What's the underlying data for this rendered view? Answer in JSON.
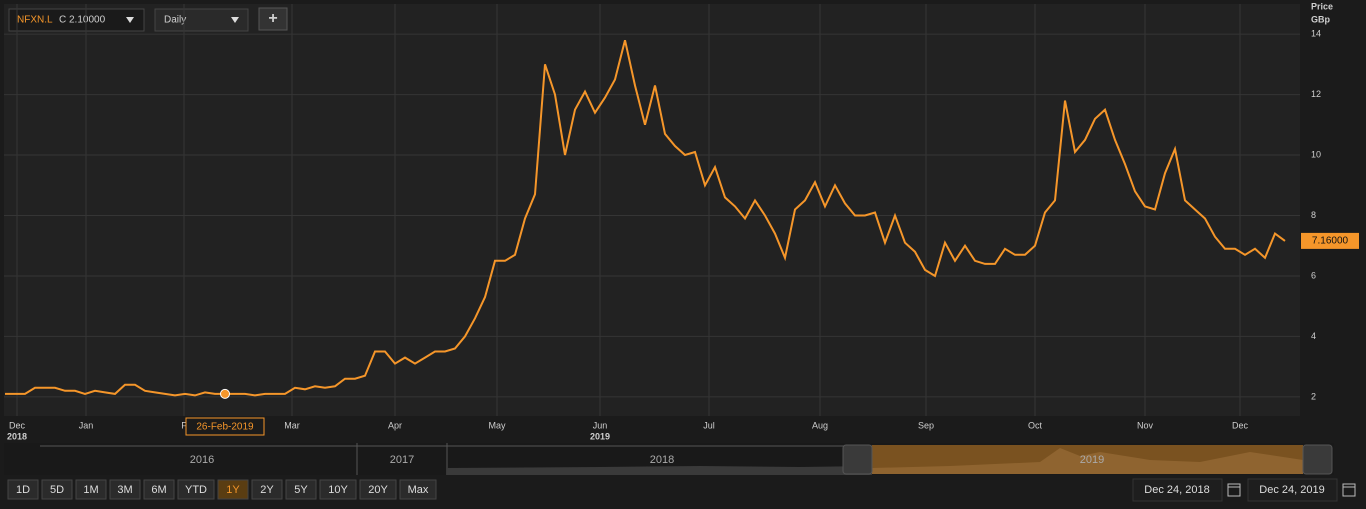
{
  "chart_data": {
    "type": "line",
    "y_axis_title": "Price",
    "y_axis_unit": "GBp",
    "series": [
      {
        "name": "NFXN.L",
        "color": "#f5962a",
        "values": [
          2.1,
          2.1,
          2.1,
          2.3,
          2.3,
          2.3,
          2.2,
          2.2,
          2.1,
          2.2,
          2.15,
          2.1,
          2.4,
          2.4,
          2.2,
          2.15,
          2.1,
          2.05,
          2.1,
          2.05,
          2.15,
          2.1,
          2.1,
          2.1,
          2.1,
          2.05,
          2.1,
          2.1,
          2.1,
          2.3,
          2.25,
          2.35,
          2.3,
          2.35,
          2.6,
          2.6,
          2.7,
          3.5,
          3.5,
          3.1,
          3.3,
          3.1,
          3.3,
          3.5,
          3.5,
          3.6,
          4.0,
          4.6,
          5.3,
          6.5,
          6.5,
          6.7,
          7.9,
          8.7,
          13.0,
          12.0,
          10.0,
          11.5,
          12.1,
          11.4,
          11.9,
          12.5,
          13.8,
          12.3,
          11.0,
          12.3,
          10.7,
          10.3,
          10.0,
          10.1,
          9.0,
          9.6,
          8.6,
          8.3,
          7.9,
          8.5,
          8.0,
          7.4,
          6.6,
          8.2,
          8.5,
          9.1,
          8.3,
          9.0,
          8.4,
          8.0,
          8.0,
          8.1,
          7.1,
          8.0,
          7.1,
          6.8,
          6.2,
          6.0,
          7.1,
          6.5,
          7.0,
          6.5,
          6.4,
          6.4,
          6.9,
          6.7,
          6.7,
          7.0,
          8.1,
          8.5,
          11.8,
          10.1,
          10.5,
          11.2,
          11.5,
          10.5,
          9.7,
          8.8,
          8.3,
          8.2,
          9.4,
          10.2,
          8.5,
          8.2,
          7.9,
          7.3,
          6.9,
          6.9,
          6.7,
          6.9,
          6.6,
          7.4,
          7.16
        ]
      }
    ],
    "last_value_label": "7.16000",
    "crosshair": {
      "label": "26-Feb-2019",
      "value": 2.1
    },
    "xlim": [
      0,
      128
    ],
    "xticks": [
      {
        "value": 1.2,
        "label": "Dec"
      },
      {
        "value": 8.1,
        "label": "Jan"
      },
      {
        "value": 17.9,
        "label": "F"
      },
      {
        "value": 28.7,
        "label": "Mar"
      },
      {
        "value": 39,
        "label": "Apr"
      },
      {
        "value": 49.2,
        "label": "May"
      },
      {
        "value": 59.5,
        "label": "Jun"
      },
      {
        "value": 70.4,
        "label": "Jul"
      },
      {
        "value": 81.5,
        "label": "Aug"
      },
      {
        "value": 92.1,
        "label": "Sep"
      },
      {
        "value": 103,
        "label": "Oct"
      },
      {
        "value": 114,
        "label": "Nov"
      },
      {
        "value": 123.5,
        "label": "Dec"
      }
    ],
    "year_labels": [
      {
        "value": 1.2,
        "label": "2018"
      },
      {
        "value": 59.5,
        "label": "2019"
      }
    ],
    "ylim": [
      1.5,
      14.5
    ],
    "yticks": [
      2,
      4,
      6,
      8,
      10,
      12,
      14
    ],
    "grid": true
  },
  "ui": {
    "symbol": "NFXN.L",
    "close": "C 2.10000",
    "interval": "Daily",
    "add": "+",
    "navigator_years": [
      "2016",
      "2017",
      "2018",
      "2019"
    ],
    "ranges": [
      "1D",
      "5D",
      "1M",
      "3M",
      "6M",
      "YTD",
      "1Y",
      "2Y",
      "5Y",
      "10Y",
      "20Y",
      "Max"
    ],
    "active_range": "1Y",
    "start_date": "Dec 24, 2018",
    "end_date": "Dec 24, 2019"
  }
}
